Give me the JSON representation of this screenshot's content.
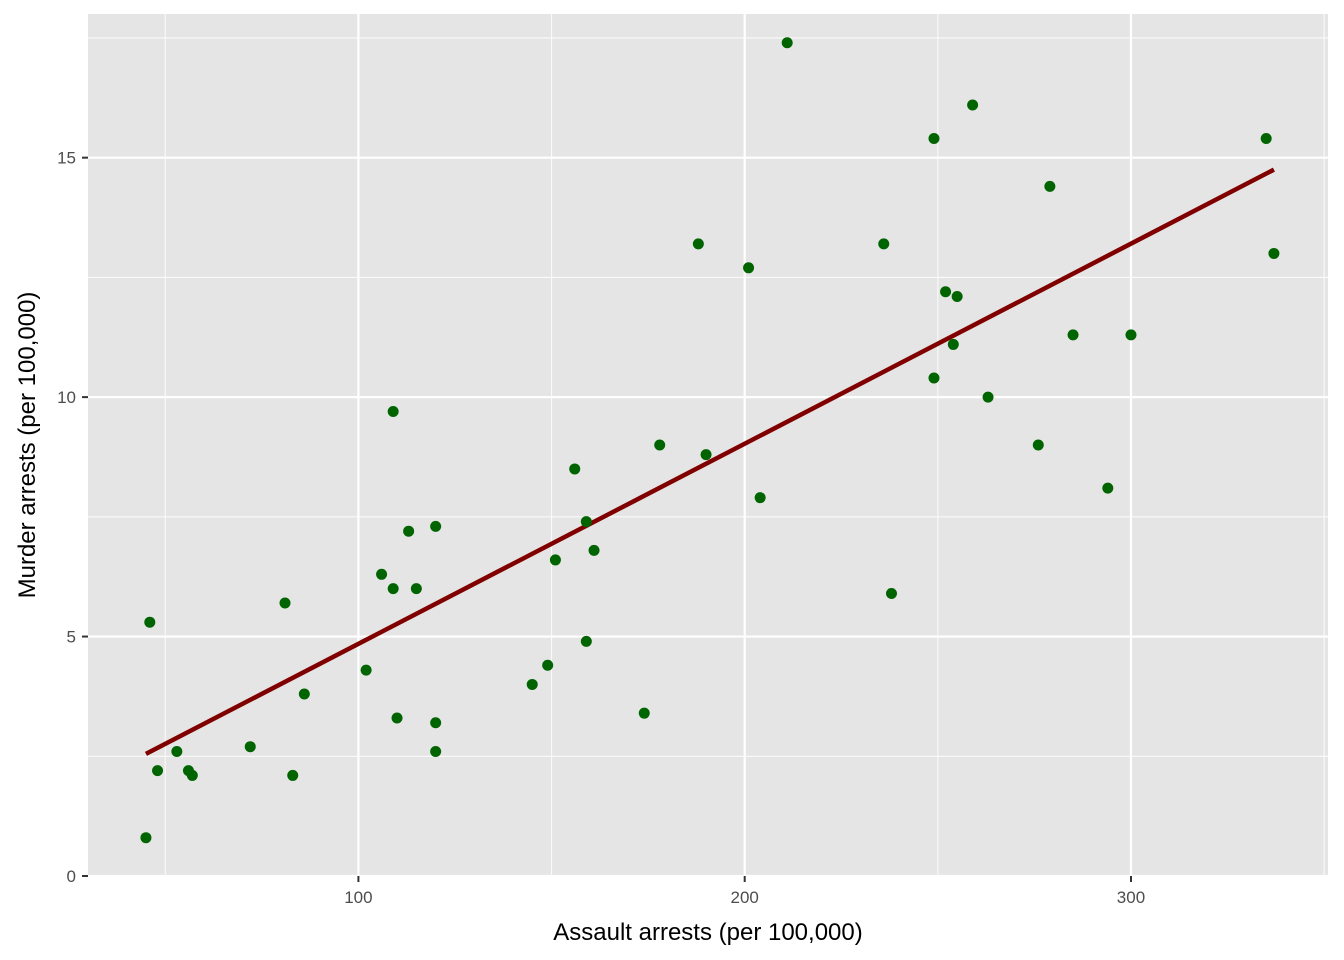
{
  "chart_data": {
    "type": "scatter",
    "title": "",
    "xlabel": "Assault arrests (per 100,000)",
    "ylabel": "Murder arrests (per 100,000)",
    "xlim": [
      30,
      351
    ],
    "ylim": [
      0,
      18
    ],
    "x_ticks": [
      100,
      200,
      300
    ],
    "x_tick_labels": [
      "100",
      "200",
      "300"
    ],
    "y_ticks": [
      0,
      5,
      10,
      15
    ],
    "y_tick_labels": [
      "0",
      "5",
      "10",
      "15"
    ],
    "grid": true,
    "legend": "none",
    "colors": {
      "panel_background": "#e5e5e5",
      "grid": "#ffffff",
      "points": "#006400",
      "trend_line": "#800000"
    },
    "series": [
      {
        "type": "scatter",
        "points": [
          [
            45,
            0.8
          ],
          [
            46,
            5.3
          ],
          [
            48,
            2.2
          ],
          [
            53,
            2.6
          ],
          [
            56,
            2.2
          ],
          [
            57,
            2.1
          ],
          [
            72,
            2.7
          ],
          [
            81,
            5.7
          ],
          [
            83,
            2.1
          ],
          [
            86,
            3.8
          ],
          [
            102,
            4.3
          ],
          [
            106,
            6.3
          ],
          [
            109,
            9.7
          ],
          [
            109,
            6.0
          ],
          [
            110,
            3.3
          ],
          [
            113,
            7.2
          ],
          [
            115,
            6.0
          ],
          [
            120,
            7.3
          ],
          [
            120,
            3.2
          ],
          [
            120,
            2.6
          ],
          [
            145,
            4.0
          ],
          [
            149,
            4.4
          ],
          [
            151,
            6.6
          ],
          [
            156,
            8.5
          ],
          [
            159,
            7.4
          ],
          [
            159,
            4.9
          ],
          [
            161,
            6.8
          ],
          [
            174,
            3.4
          ],
          [
            178,
            9.0
          ],
          [
            188,
            13.2
          ],
          [
            190,
            8.8
          ],
          [
            201,
            12.7
          ],
          [
            204,
            7.9
          ],
          [
            211,
            17.4
          ],
          [
            236,
            13.2
          ],
          [
            238,
            5.9
          ],
          [
            249,
            15.4
          ],
          [
            249,
            10.4
          ],
          [
            252,
            12.2
          ],
          [
            254,
            11.1
          ],
          [
            255,
            12.1
          ],
          [
            259,
            16.1
          ],
          [
            263,
            10.0
          ],
          [
            276,
            9.0
          ],
          [
            279,
            14.4
          ],
          [
            285,
            11.3
          ],
          [
            294,
            8.1
          ],
          [
            300,
            11.3
          ],
          [
            335,
            15.4
          ],
          [
            337,
            13.0
          ]
        ]
      },
      {
        "type": "line",
        "points": [
          [
            45,
            2.55
          ],
          [
            337,
            14.75
          ]
        ]
      }
    ]
  }
}
